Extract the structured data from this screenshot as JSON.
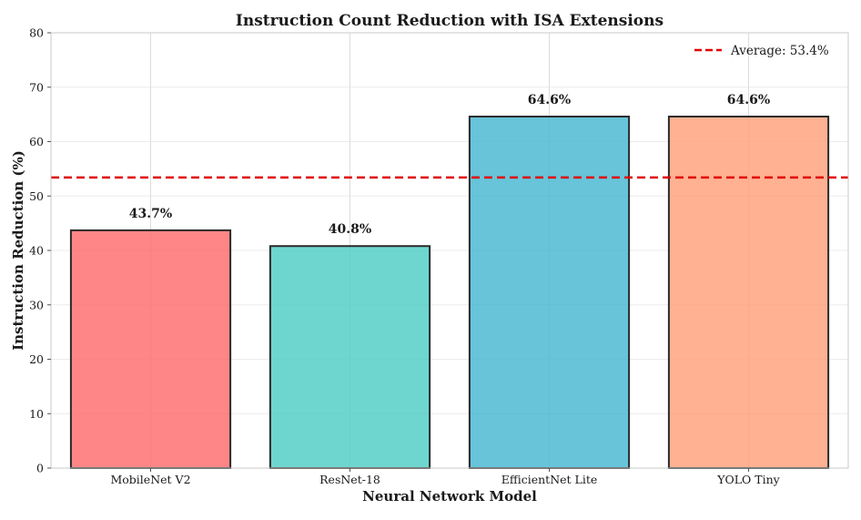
{
  "chart_data": {
    "type": "bar",
    "title": "Instruction Count Reduction with ISA Extensions",
    "xlabel": "Neural Network Model",
    "ylabel": "Instruction Reduction (%)",
    "categories": [
      "MobileNet V2",
      "ResNet-18",
      "EfficientNet Lite",
      "YOLO Tiny"
    ],
    "values": [
      43.7,
      40.8,
      64.6,
      64.6
    ],
    "data_labels": [
      "43.7%",
      "40.8%",
      "64.6%",
      "64.6%"
    ],
    "colors": [
      "#ff6b6b",
      "#4ecdc4",
      "#45b7d1",
      "#ffa07a"
    ],
    "ylim": [
      0,
      80
    ],
    "yticks": [
      0,
      10,
      20,
      30,
      40,
      50,
      60,
      70,
      80
    ],
    "grid": true,
    "reference_line": {
      "value": 53.4,
      "label": "Average: 53.4%",
      "color": "#e00000",
      "style": "dashed"
    },
    "legend_position": "top-right"
  }
}
